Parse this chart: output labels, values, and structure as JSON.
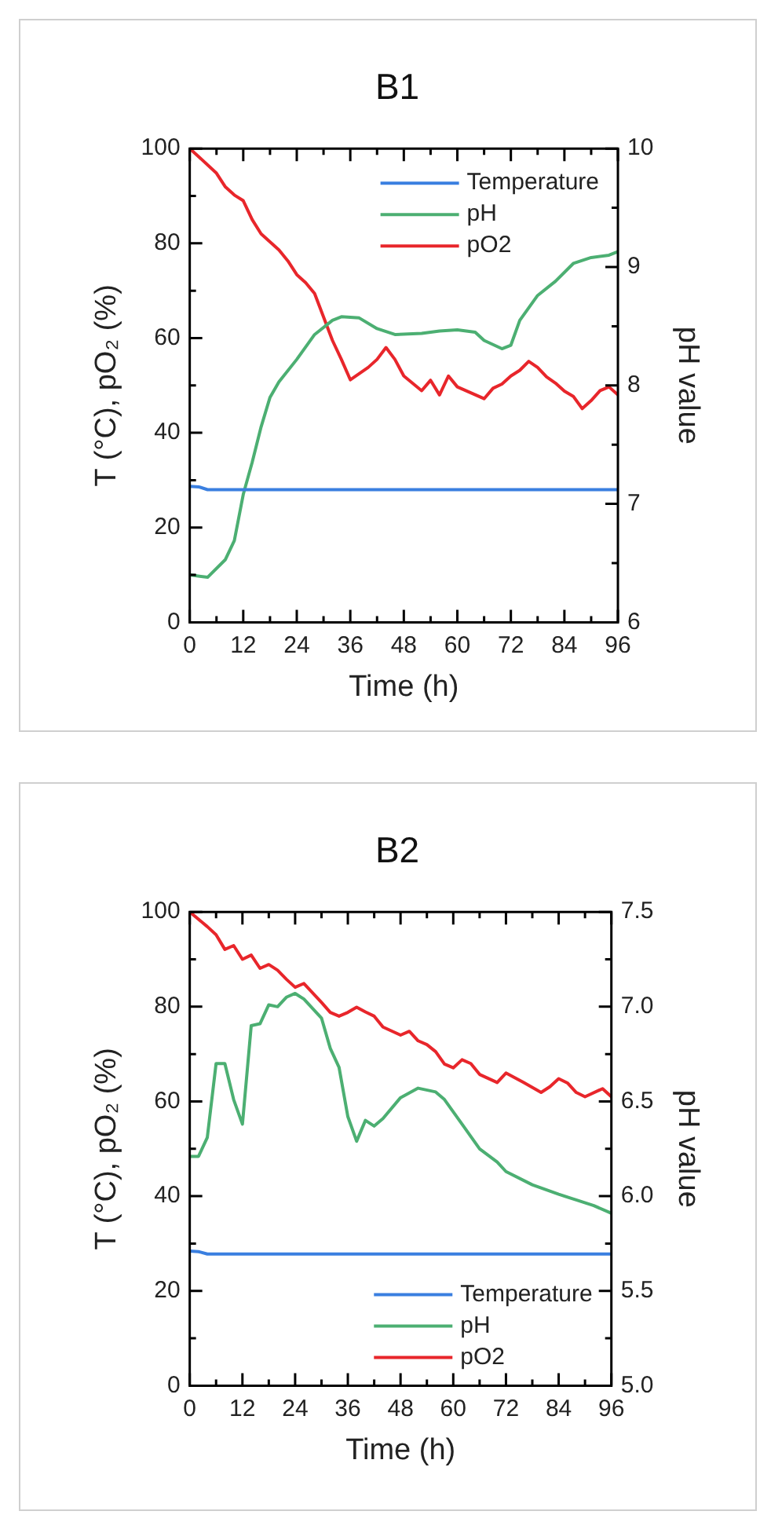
{
  "chart_data": [
    {
      "type": "line",
      "title": "B1",
      "xlabel": "Time (h)",
      "ylabel": "T (°C), pO₂ (%)",
      "y2label": "pH value",
      "xlim": [
        0,
        96
      ],
      "xticks": [
        0,
        {
          "value": 6,
          "label": null
        },
        12,
        {
          "value": 18,
          "label": null
        },
        24,
        {
          "value": 30,
          "label": null
        },
        36,
        {
          "value": 42,
          "label": null
        },
        48,
        {
          "value": 54,
          "label": null
        },
        60,
        {
          "value": 66,
          "label": null
        },
        72,
        {
          "value": 78,
          "label": null
        },
        84,
        {
          "value": 90,
          "label": null
        },
        96
      ],
      "ylim": [
        0,
        100
      ],
      "yticks": [
        0,
        {
          "value": 10,
          "label": null
        },
        20,
        {
          "value": 30,
          "label": null
        },
        40,
        {
          "value": 50,
          "label": null
        },
        60,
        {
          "value": 70,
          "label": null
        },
        80,
        {
          "value": 90,
          "label": null
        },
        100
      ],
      "y2lim": [
        6,
        10
      ],
      "y2ticks": [
        6,
        {
          "value": 6.5,
          "label": null
        },
        7,
        {
          "value": 7.5,
          "label": null
        },
        8,
        {
          "value": 8.5,
          "label": null
        },
        9,
        {
          "value": 9.5,
          "label": null
        },
        10
      ],
      "grid": false,
      "legend": "top right",
      "marker": "none",
      "line_style": "solid",
      "series": [
        {
          "name": "Temperature",
          "color": "#3a7fe0",
          "x": [
            0,
            2,
            4,
            96
          ],
          "values": [
            28.7,
            28.6,
            28,
            28
          ]
        },
        {
          "name": "pH",
          "color": "#4caf72",
          "axis": "y2",
          "x": [
            0,
            4,
            8,
            10,
            12,
            14,
            16,
            18,
            20,
            24,
            28,
            32,
            34,
            38,
            42,
            46,
            52,
            56,
            60,
            64,
            66,
            70,
            72,
            74,
            78,
            82,
            86,
            90,
            94,
            96
          ],
          "values": [
            6.4,
            6.38,
            6.53,
            6.69,
            7.08,
            7.35,
            7.65,
            7.9,
            8.03,
            8.22,
            8.43,
            8.55,
            8.58,
            8.57,
            8.48,
            8.43,
            8.44,
            8.46,
            8.47,
            8.45,
            8.38,
            8.31,
            8.34,
            8.55,
            8.76,
            8.88,
            9.03,
            9.08,
            9.1,
            9.13
          ]
        },
        {
          "name": "pO2",
          "color": "#e8262b",
          "x": [
            0,
            2,
            6,
            8,
            10,
            12,
            14,
            16,
            20,
            22,
            24,
            26,
            28,
            32,
            34,
            36,
            40,
            42,
            44,
            46,
            48,
            52,
            54,
            56,
            58,
            60,
            66,
            68,
            70,
            72,
            74,
            76,
            78,
            80,
            82,
            84,
            86,
            88,
            90,
            92,
            94,
            96
          ],
          "values": [
            100,
            98.3,
            94.8,
            91.9,
            90.2,
            89,
            85,
            82,
            78.6,
            76.3,
            73.4,
            71.7,
            69.4,
            59.5,
            55.5,
            51.2,
            53.8,
            55.5,
            58,
            55.5,
            52,
            48.9,
            51.1,
            48,
            52,
            49.7,
            47.2,
            49.4,
            50.3,
            52,
            53.2,
            55.1,
            53.8,
            51.8,
            50.5,
            48.8,
            47.7,
            45.1,
            46.8,
            48.9,
            49.7,
            48
          ]
        }
      ]
    },
    {
      "type": "line",
      "title": "B2",
      "xlabel": "Time (h)",
      "ylabel": "T (°C), pO₂ (%)",
      "y2label": "pH value",
      "xlim": [
        0,
        96
      ],
      "xticks": [
        0,
        {
          "value": 6,
          "label": null
        },
        12,
        {
          "value": 18,
          "label": null
        },
        24,
        {
          "value": 30,
          "label": null
        },
        36,
        {
          "value": 42,
          "label": null
        },
        48,
        {
          "value": 54,
          "label": null
        },
        60,
        {
          "value": 66,
          "label": null
        },
        72,
        {
          "value": 78,
          "label": null
        },
        84,
        {
          "value": 90,
          "label": null
        },
        96
      ],
      "ylim": [
        0,
        100
      ],
      "yticks": [
        0,
        {
          "value": 10,
          "label": null
        },
        20,
        {
          "value": 30,
          "label": null
        },
        40,
        {
          "value": 50,
          "label": null
        },
        60,
        {
          "value": 70,
          "label": null
        },
        80,
        {
          "value": 90,
          "label": null
        },
        100
      ],
      "y2lim": [
        5,
        7.5
      ],
      "y2ticks": [
        {
          "value": 5,
          "label": "5.0"
        },
        {
          "value": 5.25,
          "label": null
        },
        5.5,
        {
          "value": 5.75,
          "label": null
        },
        {
          "value": 6,
          "label": "6.0"
        },
        {
          "value": 6.25,
          "label": null
        },
        6.5,
        {
          "value": 6.75,
          "label": null
        },
        {
          "value": 7,
          "label": "7.0"
        },
        {
          "value": 7.25,
          "label": null
        },
        7.5
      ],
      "grid": false,
      "legend": "bottom right",
      "marker": "none",
      "line_style": "solid",
      "series": [
        {
          "name": "Temperature",
          "color": "#3a7fe0",
          "x": [
            0,
            2,
            4,
            96
          ],
          "values": [
            28.4,
            28.3,
            27.8,
            27.8
          ]
        },
        {
          "name": "pH",
          "color": "#4caf72",
          "axis": "y2",
          "x": [
            0,
            2,
            4,
            6,
            8,
            10,
            12,
            14,
            16,
            18,
            20,
            22,
            24,
            26,
            30,
            32,
            34,
            36,
            38,
            40,
            42,
            44,
            48,
            52,
            56,
            58,
            62,
            66,
            70,
            72,
            78,
            84,
            88,
            92,
            96
          ],
          "values": [
            6.21,
            6.21,
            6.31,
            6.7,
            6.7,
            6.51,
            6.38,
            6.9,
            6.91,
            7.01,
            7,
            7.05,
            7.07,
            7.04,
            6.94,
            6.78,
            6.68,
            6.42,
            6.29,
            6.4,
            6.37,
            6.41,
            6.52,
            6.57,
            6.55,
            6.51,
            6.38,
            6.25,
            6.18,
            6.13,
            6.06,
            6.01,
            5.98,
            5.95,
            5.91
          ]
        },
        {
          "name": "pO2",
          "color": "#e8262b",
          "x": [
            0,
            4,
            6,
            8,
            10,
            12,
            14,
            16,
            18,
            20,
            22,
            24,
            26,
            30,
            32,
            34,
            36,
            38,
            40,
            42,
            44,
            48,
            50,
            52,
            54,
            56,
            58,
            60,
            62,
            64,
            66,
            70,
            72,
            76,
            80,
            82,
            84,
            86,
            88,
            90,
            94,
            96
          ],
          "values": [
            100,
            96.9,
            95.2,
            92.1,
            92.9,
            90,
            90.9,
            88.1,
            88.9,
            87.7,
            85.8,
            84.1,
            84.9,
            80.9,
            78.8,
            78,
            78.8,
            79.9,
            78.9,
            78,
            75.7,
            74,
            74.8,
            72.8,
            72,
            70.5,
            67.9,
            67.1,
            68.8,
            68,
            65.7,
            64,
            66,
            64,
            61.9,
            63.1,
            64.8,
            63.9,
            61.9,
            61,
            62.7,
            61
          ]
        }
      ]
    }
  ]
}
